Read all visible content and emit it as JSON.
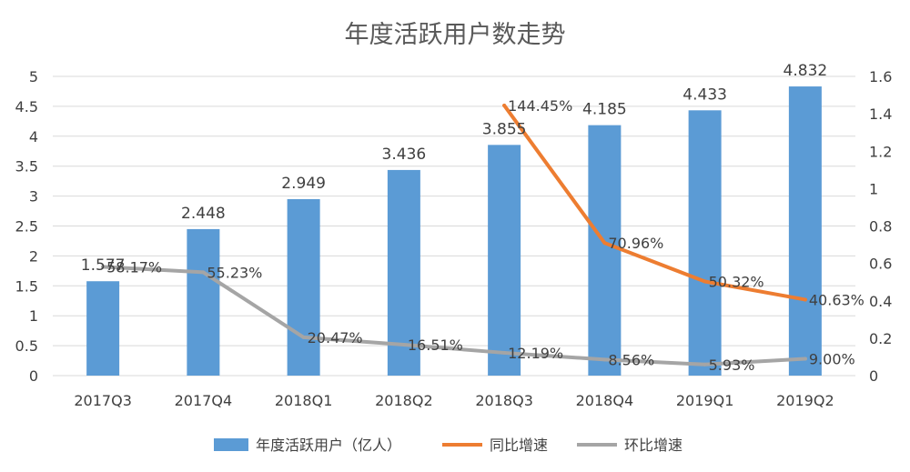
{
  "chart_data": {
    "type": "bar",
    "title": "年度活跃用户数走势",
    "categories": [
      "2017Q3",
      "2017Q4",
      "2018Q1",
      "2018Q2",
      "2018Q3",
      "2018Q4",
      "2019Q1",
      "2019Q2"
    ],
    "primary_axis": {
      "min": 0,
      "max": 5,
      "ticks": [
        "0",
        "0.5",
        "1",
        "1.5",
        "2",
        "2.5",
        "3",
        "3.5",
        "4",
        "4.5",
        "5"
      ]
    },
    "secondary_axis": {
      "min": 0,
      "max": 1.6,
      "ticks": [
        "0",
        "0.2",
        "0.4",
        "0.6",
        "0.8",
        "1",
        "1.2",
        "1.4",
        "1.6"
      ]
    },
    "legend_position": "bottom",
    "series": [
      {
        "name": "年度活跃用户（亿人）",
        "kind": "bar",
        "axis": "primary",
        "color": "#5B9BD5",
        "values": [
          1.577,
          2.448,
          2.949,
          3.436,
          3.855,
          4.185,
          4.433,
          4.832
        ],
        "labels": [
          "1.577",
          "2.448",
          "2.949",
          "3.436",
          "3.855",
          "4.185",
          "4.433",
          "4.832"
        ]
      },
      {
        "name": "同比增速",
        "kind": "line",
        "axis": "secondary",
        "color": "#ED7D31",
        "values": [
          null,
          null,
          null,
          null,
          1.4445,
          0.7096,
          0.5032,
          0.4063
        ],
        "labels": [
          "",
          "",
          "",
          "",
          "144.45%",
          "70.96%",
          "50.32%",
          "40.63%"
        ]
      },
      {
        "name": "环比增速",
        "kind": "line",
        "axis": "secondary",
        "color": "#A5A5A5",
        "values": [
          0.5817,
          0.5523,
          0.2047,
          0.1651,
          0.1219,
          0.0856,
          0.0593,
          0.09
        ],
        "labels": [
          "58.17%",
          "55.23%",
          "20.47%",
          "16.51%",
          "12.19%",
          "8.56%",
          "5.93%",
          "9.00%"
        ]
      }
    ]
  }
}
